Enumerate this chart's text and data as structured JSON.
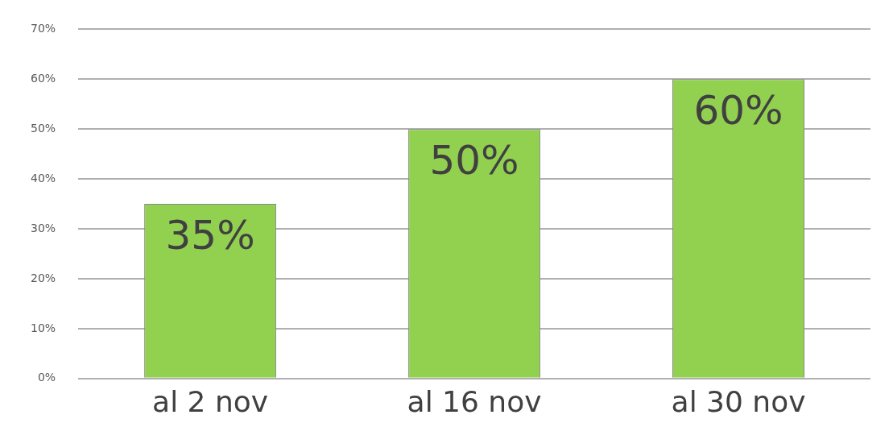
{
  "chart_data": {
    "type": "bar",
    "categories": [
      "al 2 nov",
      "al 16 nov",
      "al 30 nov"
    ],
    "values": [
      35,
      50,
      60
    ],
    "color": "#92d050",
    "value_labels": [
      "35%",
      "50%",
      "60%"
    ],
    "ylim": [
      0,
      70
    ],
    "yticks": [
      {
        "value": 0,
        "label": "0%"
      },
      {
        "value": 10,
        "label": "10%"
      },
      {
        "value": 20,
        "label": "20%"
      },
      {
        "value": 30,
        "label": "30%"
      },
      {
        "value": 40,
        "label": "40%"
      },
      {
        "value": 50,
        "label": "50%"
      },
      {
        "value": 60,
        "label": "60%"
      },
      {
        "value": 70,
        "label": "70%"
      }
    ],
    "grid": "y"
  }
}
